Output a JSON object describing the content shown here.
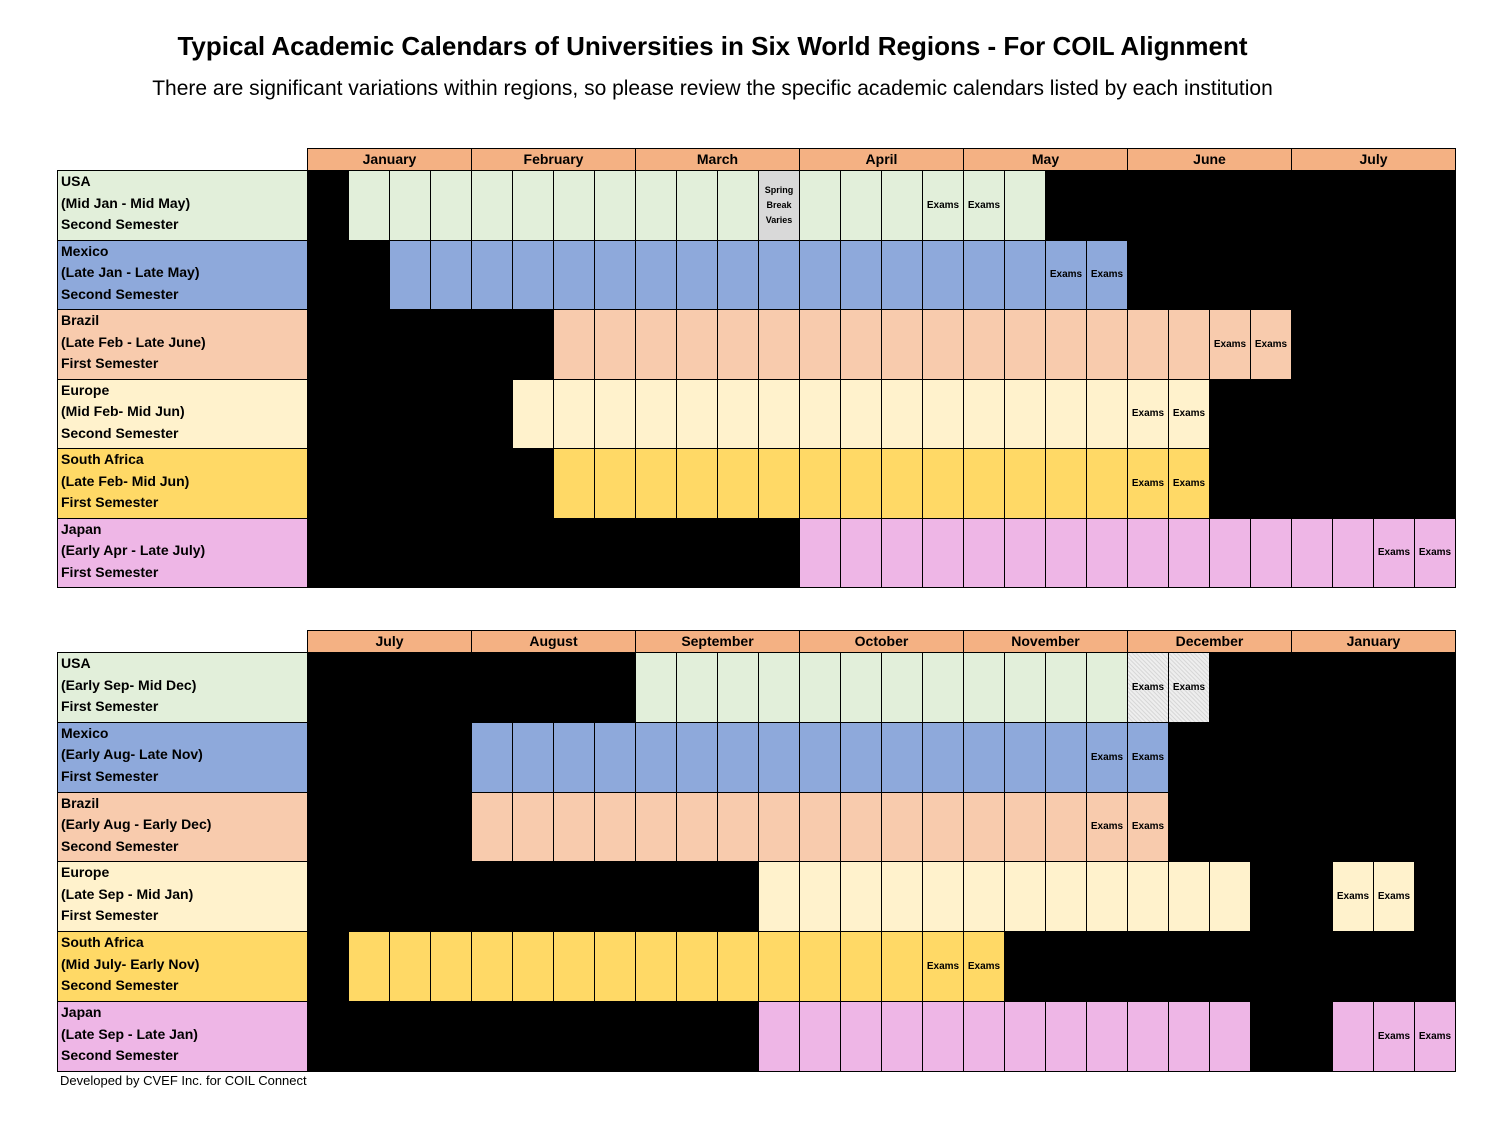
{
  "title": "Typical Academic Calendars of Universities in Six World Regions - For COIL Alignment",
  "subtitle": "There are significant variations within regions, so please review the specific academic calendars listed by each institution",
  "footer": "Developed by CVEF Inc. for COIL Connect",
  "exam_label": "Exams",
  "spring_break_label": "Spring Break Varies",
  "colors": {
    "month_header": "#F4B183",
    "off": "#000000",
    "USA": "#E2EFDA",
    "Mexico": "#8EA9DB",
    "Brazil": "#F8CBAD",
    "Europe": "#FFF2CC",
    "South Africa": "#FFD966",
    "Japan": "#EEB6E6",
    "spring_break": "#D9D9D9"
  },
  "tables": [
    {
      "months": [
        "January",
        "February",
        "March",
        "April",
        "May",
        "June",
        "July"
      ],
      "rows": [
        {
          "region": "USA",
          "range": "(Mid Jan - Mid May)",
          "semester": "Second Semester",
          "color_key": "USA",
          "start": 2,
          "end": 18,
          "exams": [
            16,
            17
          ],
          "spring_break": [
            12
          ]
        },
        {
          "region": "Mexico",
          "range": "(Late Jan - Late May)",
          "semester": "Second Semester",
          "color_key": "Mexico",
          "start": 3,
          "end": 20,
          "exams": [
            19,
            20
          ]
        },
        {
          "region": "Brazil",
          "range": "(Late Feb - Late June)",
          "semester": "First Semester",
          "color_key": "Brazil",
          "start": 7,
          "end": 24,
          "exams": [
            23,
            24
          ]
        },
        {
          "region": "Europe",
          "range": "(Mid Feb- Mid Jun)",
          "semester": "Second Semester",
          "color_key": "Europe",
          "start": 6,
          "end": 22,
          "exams": [
            21,
            22
          ]
        },
        {
          "region": "South Africa",
          "range": "(Late Feb- Mid Jun)",
          "semester": "First Semester",
          "color_key": "South Africa",
          "start": 7,
          "end": 22,
          "exams": [
            21,
            22
          ]
        },
        {
          "region": "Japan",
          "range": "(Early Apr - Late July)",
          "semester": "First Semester",
          "color_key": "Japan",
          "start": 13,
          "end": 28,
          "exams": [
            27,
            28
          ]
        }
      ]
    },
    {
      "months": [
        "July",
        "August",
        "September",
        "October",
        "November",
        "December",
        "January"
      ],
      "rows": [
        {
          "region": "USA",
          "range": "(Early Sep- Mid Dec)",
          "semester": "First Semester",
          "color_key": "USA",
          "start": 9,
          "end": 22,
          "exams": [
            21,
            22
          ],
          "hatched": [
            21,
            22
          ]
        },
        {
          "region": "Mexico",
          "range": "(Early Aug- Late Nov)",
          "semester": "First Semester",
          "color_key": "Mexico",
          "start": 5,
          "end": 21,
          "exams": [
            20,
            21
          ]
        },
        {
          "region": "Brazil",
          "range": "(Early Aug - Early Dec)",
          "semester": "Second Semester",
          "color_key": "Brazil",
          "start": 5,
          "end": 21,
          "exams": [
            20,
            21
          ]
        },
        {
          "region": "Europe",
          "range": "(Late Sep - Mid Jan)",
          "semester": "First Semester",
          "color_key": "Europe",
          "start": 12,
          "end": 23,
          "exams": [
            26,
            27
          ],
          "extra": [
            26,
            27
          ]
        },
        {
          "region": "South Africa",
          "range": "(Mid July- Early Nov)",
          "semester": "Second Semester",
          "color_key": "South Africa",
          "start": 2,
          "end": 17,
          "exams": [
            16,
            17
          ]
        },
        {
          "region": "Japan",
          "range": "(Late Sep - Late Jan)",
          "semester": "Second Semester",
          "color_key": "Japan",
          "start": 12,
          "end": 23,
          "exams": [
            27,
            28
          ],
          "extra": [
            26,
            27,
            28
          ]
        }
      ]
    }
  ]
}
